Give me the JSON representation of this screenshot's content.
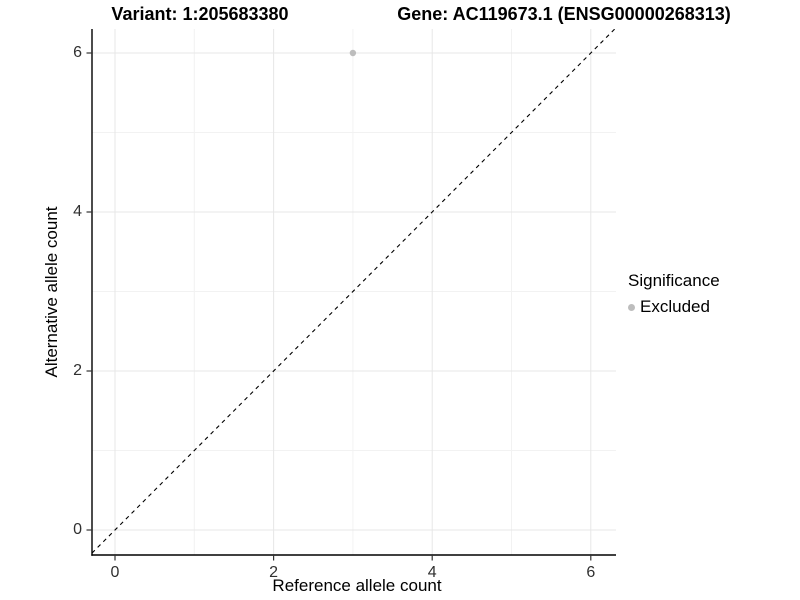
{
  "header": {
    "variant_title": "Variant: 1:205683380",
    "gene_title": "Gene: AC119673.1 (ENSG00000268313)"
  },
  "chart_data": {
    "type": "scatter",
    "xlabel": "Reference allele count",
    "ylabel": "Alternative allele count",
    "xlim": [
      -0.3,
      6.32
    ],
    "ylim": [
      -0.32,
      6.32
    ],
    "x_ticks": [
      0,
      2,
      4,
      6
    ],
    "y_ticks": [
      0,
      2,
      4,
      6
    ],
    "minor_ticks": [
      1,
      3,
      5
    ],
    "grid": "on",
    "colors": {
      "major_grid": "#e7e7e7",
      "minor_grid": "#f2f2f2",
      "axis_line": "#000000",
      "tick_mark": "#333333",
      "point": "#bdbdbd"
    },
    "reference_line": {
      "type": "identity",
      "slope": 1,
      "intercept": 0,
      "style": "dashed",
      "color": "#000000"
    },
    "series": [
      {
        "name": "Excluded",
        "color": "#bdbdbd",
        "points": [
          {
            "x": 3,
            "y": 6
          }
        ]
      }
    ],
    "legend": {
      "title": "Significance",
      "position": "right",
      "items": [
        {
          "label": "Excluded",
          "color": "#bdbdbd"
        }
      ]
    }
  }
}
